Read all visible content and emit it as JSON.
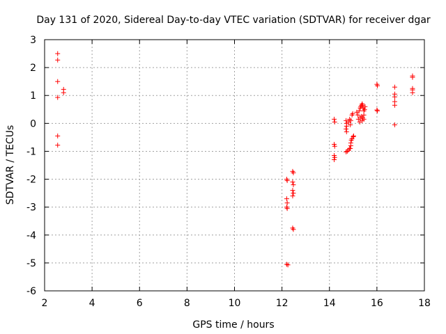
{
  "chart_data": {
    "type": "scatter",
    "title": "Day 131 of 2020, Sidereal Day-to-day VTEC variation (SDTVAR) for receiver dgar",
    "xlabel": "GPS time / hours",
    "ylabel": "SDTVAR / TECUs",
    "xlim": [
      2,
      18
    ],
    "ylim": [
      -6,
      3
    ],
    "xticks": [
      2,
      4,
      6,
      8,
      10,
      12,
      14,
      16,
      18
    ],
    "yticks": [
      -6,
      -5,
      -4,
      -3,
      -2,
      -1,
      0,
      1,
      2,
      3
    ],
    "grid": true,
    "marker": "+",
    "color": "#ff0000",
    "series": [
      {
        "name": "SDTVAR",
        "points": [
          [
            2.55,
            2.5
          ],
          [
            2.55,
            2.27
          ],
          [
            2.55,
            1.5
          ],
          [
            2.55,
            0.93
          ],
          [
            2.55,
            -0.45
          ],
          [
            2.55,
            -0.78
          ],
          [
            2.8,
            1.22
          ],
          [
            2.8,
            1.1
          ],
          [
            12.2,
            -2.0
          ],
          [
            12.22,
            -2.05
          ],
          [
            12.2,
            -2.7
          ],
          [
            12.22,
            -2.85
          ],
          [
            12.2,
            -3.0
          ],
          [
            12.22,
            -3.05
          ],
          [
            12.2,
            -5.05
          ],
          [
            12.25,
            -5.07
          ],
          [
            12.45,
            -1.72
          ],
          [
            12.48,
            -1.77
          ],
          [
            12.45,
            -2.1
          ],
          [
            12.48,
            -2.2
          ],
          [
            12.45,
            -2.4
          ],
          [
            12.48,
            -2.5
          ],
          [
            12.45,
            -2.6
          ],
          [
            12.45,
            -3.75
          ],
          [
            12.48,
            -3.8
          ],
          [
            14.2,
            0.15
          ],
          [
            14.22,
            0.05
          ],
          [
            14.2,
            -0.75
          ],
          [
            14.22,
            -0.82
          ],
          [
            14.2,
            -1.15
          ],
          [
            14.22,
            -1.22
          ],
          [
            14.2,
            -1.3
          ],
          [
            14.7,
            0.1
          ],
          [
            14.72,
            0.0
          ],
          [
            14.72,
            -0.1
          ],
          [
            14.7,
            -0.2
          ],
          [
            14.72,
            -0.3
          ],
          [
            14.7,
            -1.02
          ],
          [
            14.75,
            -1.0
          ],
          [
            14.8,
            -0.95
          ],
          [
            14.85,
            -0.9
          ],
          [
            14.85,
            0.15
          ],
          [
            14.8,
            0.05
          ],
          [
            14.9,
            0.1
          ],
          [
            14.88,
            -0.05
          ],
          [
            14.95,
            0.3
          ],
          [
            14.98,
            0.35
          ],
          [
            14.9,
            -0.7
          ],
          [
            14.92,
            -0.6
          ],
          [
            14.95,
            -0.55
          ],
          [
            15.0,
            -0.48
          ],
          [
            15.02,
            -0.45
          ],
          [
            14.9,
            -0.8
          ],
          [
            14.88,
            -0.9
          ],
          [
            15.15,
            0.4
          ],
          [
            15.2,
            0.3
          ],
          [
            15.25,
            0.45
          ],
          [
            15.22,
            0.15
          ],
          [
            15.28,
            0.05
          ],
          [
            15.3,
            0.2
          ],
          [
            15.3,
            0.55
          ],
          [
            15.32,
            0.6
          ],
          [
            15.35,
            0.65
          ],
          [
            15.38,
            0.7
          ],
          [
            15.4,
            0.65
          ],
          [
            15.42,
            0.55
          ],
          [
            15.35,
            0.25
          ],
          [
            15.4,
            0.2
          ],
          [
            15.45,
            0.3
          ],
          [
            15.45,
            0.45
          ],
          [
            15.48,
            0.5
          ],
          [
            15.5,
            0.6
          ],
          [
            15.45,
            0.15
          ],
          [
            15.38,
            0.1
          ],
          [
            16.0,
            1.4
          ],
          [
            16.02,
            1.35
          ],
          [
            16.0,
            0.48
          ],
          [
            16.02,
            0.45
          ],
          [
            16.75,
            1.3
          ],
          [
            16.75,
            1.05
          ],
          [
            16.75,
            0.95
          ],
          [
            16.75,
            0.78
          ],
          [
            16.75,
            0.65
          ],
          [
            16.75,
            -0.05
          ],
          [
            17.5,
            1.7
          ],
          [
            17.5,
            1.65
          ],
          [
            17.5,
            1.25
          ],
          [
            17.5,
            1.2
          ],
          [
            17.5,
            1.1
          ]
        ]
      }
    ]
  }
}
